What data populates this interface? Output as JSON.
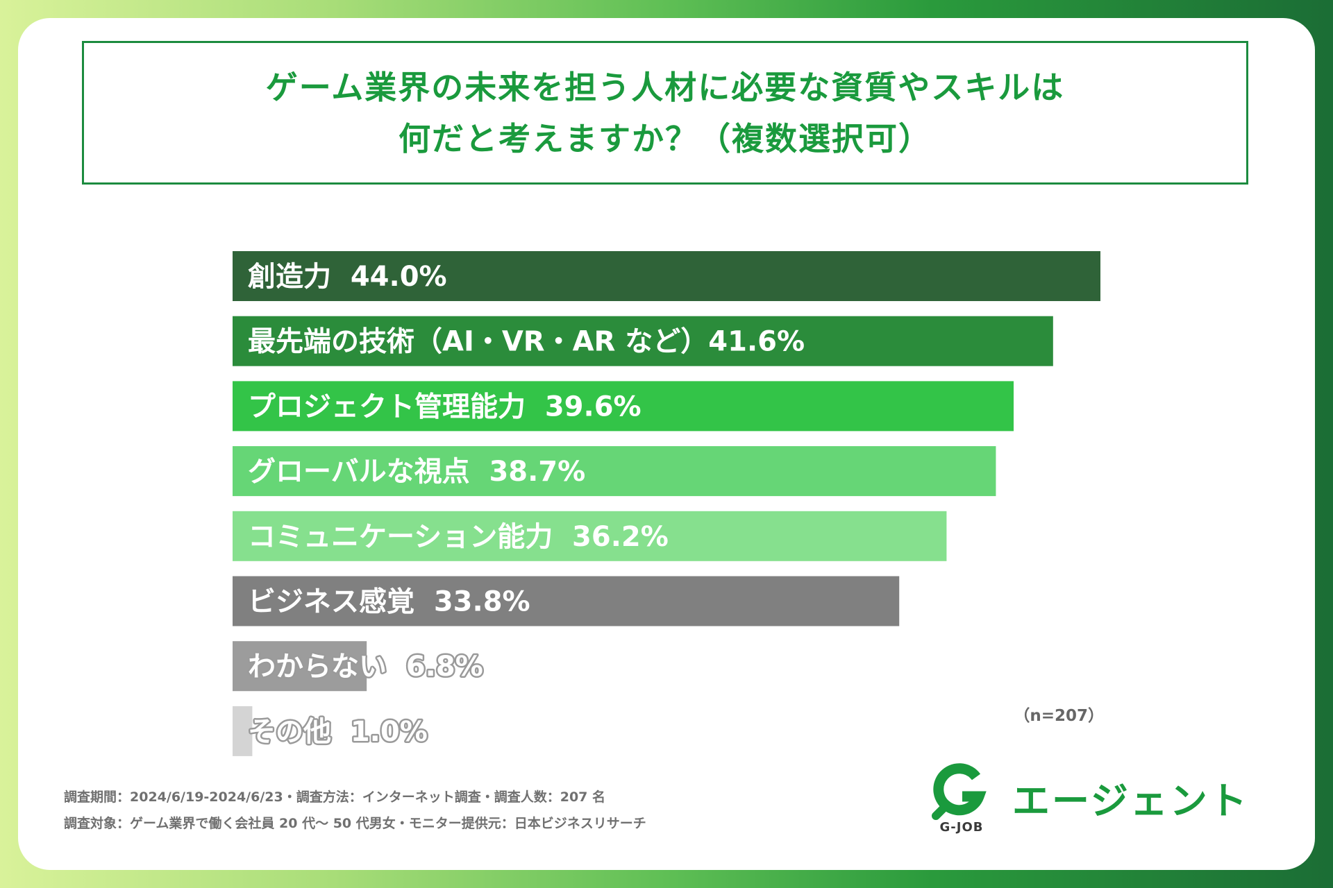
{
  "title": {
    "line1": "ゲーム業界の未来を担う人材に必要な資質やスキルは",
    "line2": "何だと考えますか？（複数選択可）"
  },
  "chart_data": {
    "type": "bar",
    "orientation": "horizontal",
    "title": "ゲーム業界の未来を担う人材に必要な資質やスキルは何だと考えますか？（複数選択可）",
    "categories": [
      "創造力",
      "最先端の技術（AI・VR・ARなど）",
      "プロジェクト管理能力",
      "グローバルな視点",
      "コミュニケーション能力",
      "ビジネス感覚",
      "わからない",
      "その他"
    ],
    "values": [
      44.0,
      41.6,
      39.6,
      38.7,
      36.2,
      33.8,
      6.8,
      1.0
    ],
    "labels": [
      "創造力  44.0%",
      "最先端の技術（AI・VR・AR など）41.6%",
      "プロジェクト管理能力  39.6%",
      "グローバルな視点  38.7%",
      "コミュニケーション能力  36.2%",
      "ビジネス感覚  33.8%",
      "わからない  6.8%",
      "その他  1.0%"
    ],
    "colors": [
      "#2f6338",
      "#2b8c3b",
      "#33c448",
      "#66d676",
      "#86e08e",
      "#808080",
      "#9c9c9c",
      "#d4d4d4"
    ],
    "label_colors": [
      "#ffffff",
      "#ffffff",
      "#ffffff",
      "#ffffff",
      "#ffffff",
      "#ffffff",
      "#ffffff",
      "#ffffff"
    ],
    "label_outline": [
      false,
      false,
      false,
      false,
      false,
      false,
      true,
      true
    ],
    "outline_color": "#9a9a9a",
    "xlim": [
      0,
      44.0
    ],
    "unit": "%",
    "sample": "（n=207）"
  },
  "footnotes": {
    "line1": "調査期間：2024/6/19-2024/6/23・調査方法：インターネット調査・調査人数：207 名",
    "line2": "調査対象：ゲーム業界で働く会社員 20 代〜 50 代男女・モニター提供元：日本ビジネスリサーチ"
  },
  "logo": {
    "mark_text": "G-JOB",
    "name": "エージェント",
    "accent": "#1a9a3d"
  }
}
